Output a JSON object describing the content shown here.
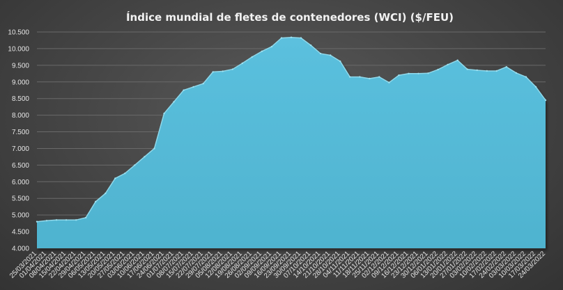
{
  "chart_data": {
    "type": "area",
    "title": "Índice mundial de fletes de contenedores (WCI) ($/FEU)",
    "ylim": [
      4000,
      10500
    ],
    "yticks": [
      "4.000",
      "4.500",
      "5.000",
      "5.500",
      "6.000",
      "6.500",
      "7.000",
      "7.500",
      "8.000",
      "8.500",
      "9.000",
      "9.500",
      "10.000",
      "10.500"
    ],
    "ytick_values": [
      4000,
      4500,
      5000,
      5500,
      6000,
      6500,
      7000,
      7500,
      8000,
      8500,
      9000,
      9500,
      10000,
      10500
    ],
    "grid": true,
    "color": "#5bc0de",
    "x": [
      "25/03/2021",
      "01/04/2021",
      "08/04/2021",
      "15/04/2021",
      "22/04/2021",
      "29/04/2021",
      "06/05/2021",
      "13/05/2021",
      "20/05/2021",
      "27/05/2021",
      "03/06/2021",
      "10/06/2021",
      "17/06/2021",
      "24/06/2021",
      "01/07/2021",
      "08/07/2021",
      "15/07/2021",
      "22/07/2021",
      "29/07/2021",
      "05/08/2021",
      "12/08/2021",
      "19/08/2021",
      "26/08/2021",
      "02/09/2021",
      "09/09/2021",
      "16/09/2021",
      "23/09/2021",
      "30/09/2021",
      "07/10/2021",
      "14/10/2021",
      "21/10/2021",
      "28/10/2021",
      "04/11/2021",
      "11/11/2021",
      "18/11/2021",
      "25/11/2021",
      "02/12/2021",
      "09/12/2021",
      "16/12/2021",
      "23/12/2021",
      "30/12/2021",
      "06/01/2022",
      "13/01/2022",
      "20/01/2022",
      "27/01/2022",
      "03/02/2022",
      "10/02/2022",
      "17/02/2022",
      "24/02/2022",
      "03/03/2022",
      "10/03/2022",
      "17/03/2022",
      "24/03/2022"
    ],
    "values": [
      4800,
      4830,
      4850,
      4850,
      4850,
      4920,
      5400,
      5650,
      6100,
      6250,
      6500,
      6750,
      7000,
      8050,
      8400,
      8750,
      8850,
      8950,
      9300,
      9320,
      9380,
      9560,
      9750,
      9920,
      10060,
      10320,
      10340,
      10320,
      10100,
      9850,
      9800,
      9620,
      9150,
      9150,
      9100,
      9150,
      8980,
      9200,
      9250,
      9250,
      9260,
      9370,
      9520,
      9650,
      9380,
      9350,
      9330,
      9330,
      9450,
      9270,
      9150,
      8850,
      8450
    ]
  }
}
